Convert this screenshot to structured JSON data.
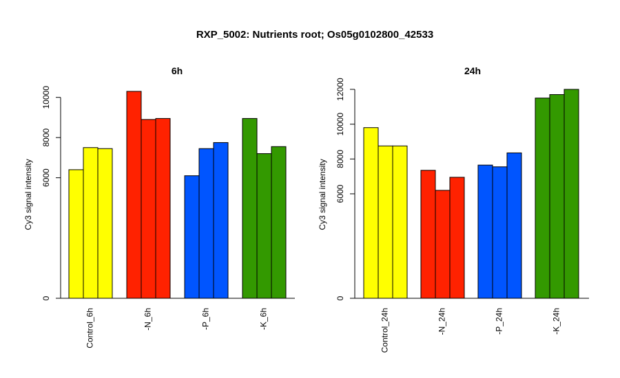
{
  "title": "RXP_5002: Nutrients root; Os05g0102800_42533",
  "chart_data": [
    {
      "type": "bar",
      "title": "6h",
      "ylabel": "Cy3 signal intensity",
      "ylim": [
        0,
        10400
      ],
      "yticks": [
        0,
        6000,
        8000,
        10000
      ],
      "grid": false,
      "categories": [
        "Control_6h",
        "-N_6h",
        "-P_6h",
        "-K_6h"
      ],
      "groups": [
        {
          "name": "Control_6h",
          "color": "#ffff00",
          "values": [
            6400,
            7500,
            7450
          ]
        },
        {
          "name": "-N_6h",
          "color": "#ff2200",
          "values": [
            10300,
            8900,
            8950
          ]
        },
        {
          "name": "-P_6h",
          "color": "#0055ff",
          "values": [
            6100,
            7450,
            7750
          ]
        },
        {
          "name": "-K_6h",
          "color": "#339900",
          "values": [
            8950,
            7200,
            7550
          ]
        }
      ]
    },
    {
      "type": "bar",
      "title": "24h",
      "ylabel": "Cy3 signal intensity",
      "ylim": [
        0,
        12000
      ],
      "yticks": [
        0,
        6000,
        8000,
        10000,
        12000
      ],
      "grid": false,
      "categories": [
        "Control_24h",
        "-N_24h",
        "-P_24h",
        "-K_24h"
      ],
      "groups": [
        {
          "name": "Control_24h",
          "color": "#ffff00",
          "values": [
            9800,
            8750,
            8750
          ]
        },
        {
          "name": "-N_24h",
          "color": "#ff2200",
          "values": [
            7350,
            6200,
            6950
          ]
        },
        {
          "name": "-P_24h",
          "color": "#0055ff",
          "values": [
            7650,
            7550,
            8350
          ]
        },
        {
          "name": "-K_24h",
          "color": "#339900",
          "values": [
            11500,
            11700,
            12000
          ]
        }
      ]
    }
  ]
}
